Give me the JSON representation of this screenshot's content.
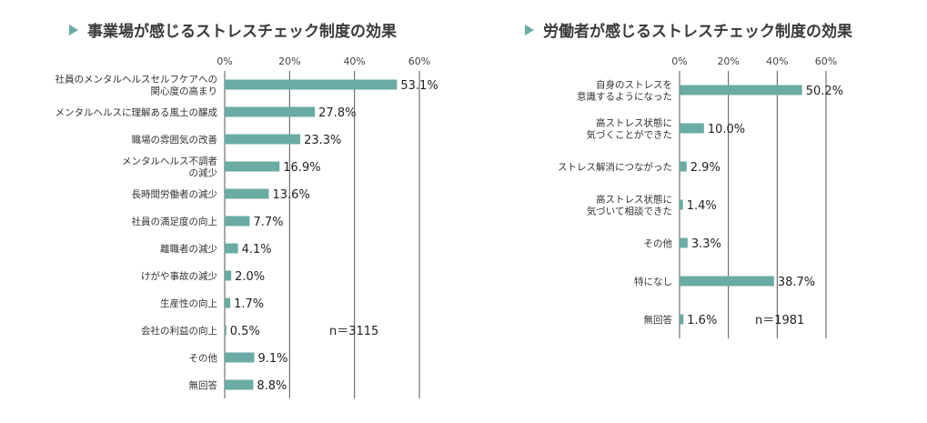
{
  "colors": {
    "bar": "#6aaca3",
    "title_marker": "#6aaca3",
    "grid": "#555555",
    "frame": "#555555"
  },
  "chart_data": [
    {
      "type": "bar",
      "orientation": "horizontal",
      "title": "事業場が感じるストレスチェック制度の効果",
      "xlim": [
        0,
        60
      ],
      "ticks": [
        "0%",
        "20%",
        "40%",
        "60%"
      ],
      "tick_values": [
        0,
        20,
        40,
        60
      ],
      "categories": [
        [
          "社員のメンタルヘルスセルフケアへの",
          "関心度の高まり"
        ],
        [
          "メンタルヘルスに理解ある風土の醸成"
        ],
        [
          "職場の雰囲気の改善"
        ],
        [
          "メンタルヘルス不調者",
          "の減少"
        ],
        [
          "長時間労働者の減少"
        ],
        [
          "社員の満足度の向上"
        ],
        [
          "離職者の減少"
        ],
        [
          "けがや事故の減少"
        ],
        [
          "生産性の向上"
        ],
        [
          "会社の利益の向上"
        ],
        [
          "その他"
        ],
        [
          "無回答"
        ]
      ],
      "values": [
        53.1,
        27.8,
        23.3,
        16.9,
        13.6,
        7.7,
        4.1,
        2.0,
        1.7,
        0.5,
        9.1,
        8.8
      ],
      "value_labels": [
        "53.1%",
        "27.8%",
        "23.3%",
        "16.9%",
        "13.6%",
        "7.7%",
        "4.1%",
        "2.0%",
        "1.7%",
        "0.5%",
        "9.1%",
        "8.8%"
      ],
      "note": "n＝3115"
    },
    {
      "type": "bar",
      "orientation": "horizontal",
      "title": "労働者が感じるストレスチェック制度の効果",
      "xlim": [
        0,
        60
      ],
      "ticks": [
        "0%",
        "20%",
        "40%",
        "60%"
      ],
      "tick_values": [
        0,
        20,
        40,
        60
      ],
      "categories": [
        [
          "自身のストレスを",
          "意識するようになった"
        ],
        [
          "高ストレス状態に",
          "気づくことができた"
        ],
        [
          "ストレス解消につながった"
        ],
        [
          "高ストレス状態に",
          "気づいて相談できた"
        ],
        [
          "その他"
        ],
        [
          "特になし"
        ],
        [
          "無回答"
        ]
      ],
      "values": [
        50.2,
        10.0,
        2.9,
        1.4,
        3.3,
        38.7,
        1.6
      ],
      "value_labels": [
        "50.2%",
        "10.0%",
        "2.9%",
        "1.4%",
        "3.3%",
        "38.7%",
        "1.6%"
      ],
      "note": "n＝1981"
    }
  ]
}
